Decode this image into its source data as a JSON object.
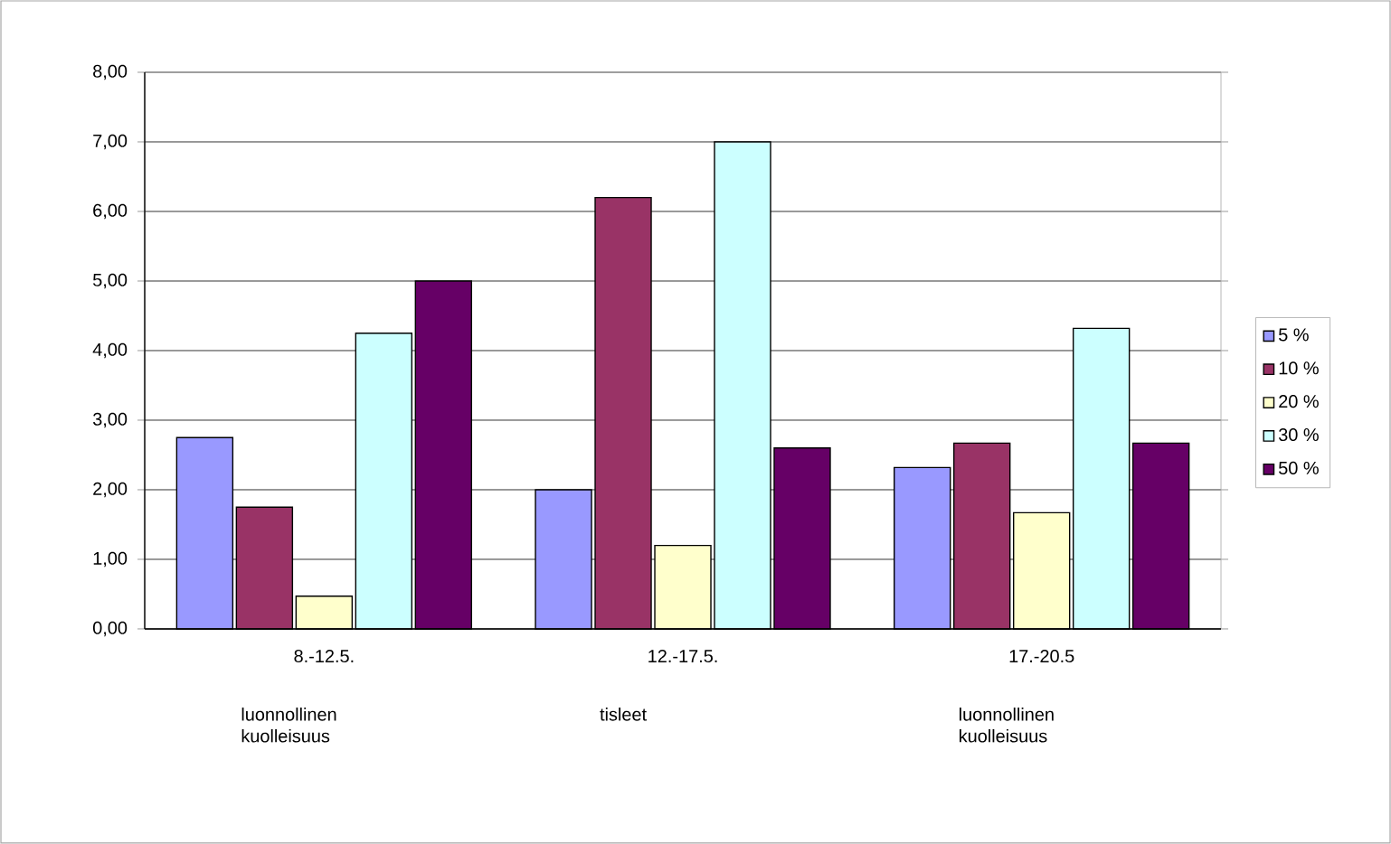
{
  "chart_data": {
    "type": "bar",
    "categories": [
      "8.-12.5.",
      "12.-17.5.",
      "17.-20.5"
    ],
    "annotations": [
      "luonnollinen kuolleisuus",
      "tisleet",
      "luonnollinen kuolleisuus"
    ],
    "series": [
      {
        "name": "5 %",
        "color": "#9999ff",
        "values": [
          2.75,
          2.0,
          2.32
        ]
      },
      {
        "name": "10 %",
        "color": "#993366",
        "values": [
          1.75,
          6.2,
          2.67
        ]
      },
      {
        "name": "20 %",
        "color": "#ffffcc",
        "values": [
          0.47,
          1.2,
          1.67
        ]
      },
      {
        "name": "30 %",
        "color": "#ccffff",
        "values": [
          4.25,
          7.0,
          4.32
        ]
      },
      {
        "name": "50 %",
        "color": "#660066",
        "values": [
          5.0,
          2.6,
          2.67
        ]
      }
    ],
    "ylim": [
      0,
      8
    ],
    "yticks": [
      {
        "value": 0,
        "label": "0,00"
      },
      {
        "value": 1,
        "label": "1,00"
      },
      {
        "value": 2,
        "label": "2,00"
      },
      {
        "value": 3,
        "label": "3,00"
      },
      {
        "value": 4,
        "label": "4,00"
      },
      {
        "value": 5,
        "label": "5,00"
      },
      {
        "value": 6,
        "label": "6,00"
      },
      {
        "value": 7,
        "label": "7,00"
      },
      {
        "value": 8,
        "label": "8,00"
      }
    ],
    "grid": "y",
    "legend": "right"
  }
}
